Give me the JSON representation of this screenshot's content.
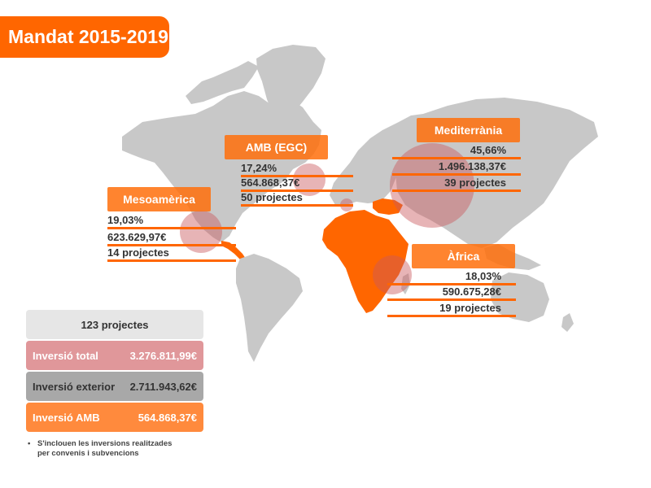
{
  "title": "Mandat 2015-2019",
  "colors": {
    "brand": "#ff6600",
    "land": "#c8c8c8",
    "bubble": "#c9585e",
    "total": "#e0979a",
    "exterior": "#a8a8a8",
    "amb": "#ff8a3d"
  },
  "regions": {
    "amb": {
      "name": "AMB (EGC)",
      "percent": "17,24%",
      "amount": "564.868,37€",
      "projects": "50 projectes",
      "share": 17.24
    },
    "mediterrania": {
      "name": "Mediterrània",
      "percent": "45,66%",
      "amount": "1.496.138,37€",
      "projects": "39 projectes",
      "share": 45.66
    },
    "mesoamerica": {
      "name": "Mesoamèrica",
      "percent": "19,03%",
      "amount": "623.629,97€",
      "projects": "14 projectes",
      "share": 19.03
    },
    "africa": {
      "name": "Àfrica",
      "percent": "18,03%",
      "amount": "590.675,28€",
      "projects": "19 projectes",
      "share": 18.03
    }
  },
  "summary": {
    "projects": "123 projectes",
    "total_label": "Inversió total",
    "total_value": "3.276.811,99€",
    "exterior_label": "Inversió exterior",
    "exterior_value": "2.711.943,62€",
    "amb_label": "Inversió AMB",
    "amb_value": "564.868,37€"
  },
  "note": {
    "bullet": "•",
    "line1": "S'inclouen les inversions realitzades",
    "line2": "per convenis i subvencions"
  }
}
